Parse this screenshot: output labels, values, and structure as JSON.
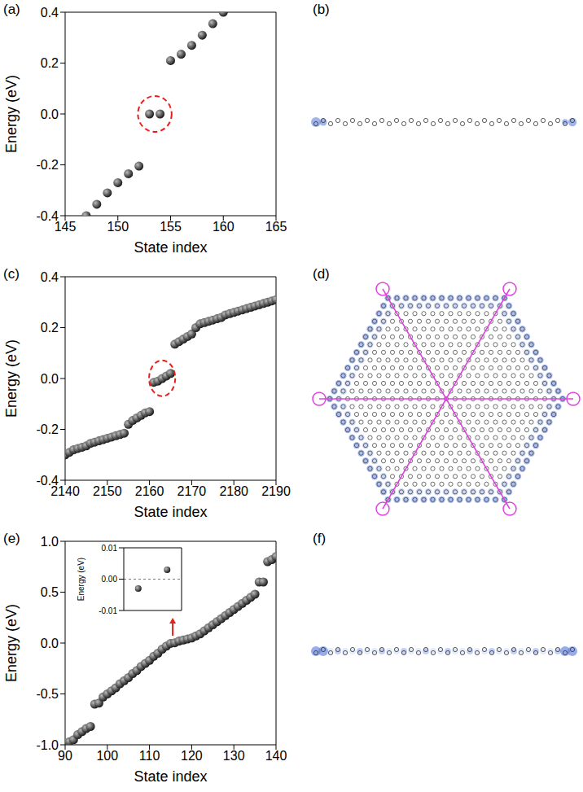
{
  "chart_data": [
    {
      "title": "(a)",
      "type": "scatter",
      "x_label": "State index",
      "y_label": "Energy (eV)",
      "color": "#111111",
      "marker": "circle",
      "x": [
        147,
        148,
        149,
        150,
        151,
        152,
        153,
        154,
        155,
        156,
        157,
        158,
        159,
        160
      ],
      "values": [
        -0.4,
        -0.355,
        -0.31,
        -0.27,
        -0.235,
        -0.205,
        0.0,
        0.0,
        0.21,
        0.235,
        0.27,
        0.31,
        0.355,
        0.4
      ],
      "xlim": [
        145,
        165
      ],
      "xticks": [
        145,
        150,
        155,
        160,
        165
      ],
      "ylim": [
        -0.4,
        0.4
      ],
      "yticks": [
        -0.4,
        -0.2,
        {
          "value": 0,
          "label": "0.0"
        },
        0.2,
        0.4
      ],
      "highlighted": [
        153,
        154
      ]
    },
    {
      "title": "(c)",
      "type": "scatter",
      "x_label": "State index",
      "y_label": "Energy (eV)",
      "color": "#111111",
      "marker": "circle",
      "x": [
        2140,
        2141,
        2142,
        2143,
        2144,
        2145,
        2146,
        2147,
        2148,
        2149,
        2150,
        2151,
        2152,
        2153,
        2154,
        2155,
        2156,
        2157,
        2158,
        2159,
        2160,
        2161,
        2162,
        2163,
        2164,
        2165,
        2166,
        2167,
        2168,
        2169,
        2170,
        2171,
        2172,
        2173,
        2174,
        2175,
        2176,
        2177,
        2178,
        2179,
        2180,
        2181,
        2182,
        2183,
        2184,
        2185,
        2186,
        2187,
        2188,
        2189,
        2190
      ],
      "values": [
        -0.3,
        -0.29,
        -0.28,
        -0.275,
        -0.27,
        -0.265,
        -0.255,
        -0.25,
        -0.245,
        -0.24,
        -0.235,
        -0.23,
        -0.225,
        -0.22,
        -0.215,
        -0.18,
        -0.165,
        -0.155,
        -0.145,
        -0.135,
        -0.13,
        -0.015,
        -0.01,
        0.0,
        0.01,
        0.02,
        0.135,
        0.145,
        0.155,
        0.165,
        0.175,
        0.2,
        0.215,
        0.22,
        0.225,
        0.23,
        0.235,
        0.24,
        0.25,
        0.255,
        0.26,
        0.265,
        0.27,
        0.275,
        0.28,
        0.285,
        0.29,
        0.295,
        0.3,
        0.305,
        0.31
      ],
      "xlim": [
        2140,
        2190
      ],
      "xticks": [
        2140,
        2150,
        2160,
        2170,
        2180,
        2190
      ],
      "ylim": [
        -0.4,
        0.4
      ],
      "yticks": [
        -0.4,
        -0.2,
        {
          "value": 0,
          "label": "0.0"
        },
        0.2,
        0.4
      ],
      "highlighted": [
        2161,
        2162,
        2163,
        2164,
        2165
      ]
    },
    {
      "title": "(e)",
      "type": "scatter",
      "x_label": "State index",
      "y_label": "Energy (eV)",
      "color": "#111111",
      "marker": "circle",
      "x": [
        91,
        92,
        93,
        94,
        95,
        96,
        97,
        98,
        99,
        100,
        101,
        102,
        103,
        104,
        105,
        106,
        107,
        108,
        109,
        110,
        111,
        112,
        113,
        114,
        115,
        116,
        117,
        118,
        119,
        120,
        121,
        122,
        123,
        124,
        125,
        126,
        127,
        128,
        129,
        130,
        131,
        132,
        133,
        134,
        135,
        136,
        137,
        138,
        139,
        140
      ],
      "values": [
        -0.97,
        -0.95,
        -0.9,
        -0.87,
        -0.84,
        -0.82,
        -0.6,
        -0.59,
        -0.53,
        -0.5,
        -0.47,
        -0.44,
        -0.4,
        -0.37,
        -0.34,
        -0.3,
        -0.27,
        -0.23,
        -0.2,
        -0.17,
        -0.13,
        -0.1,
        -0.06,
        -0.03,
        -0.003,
        0.003,
        0.02,
        0.03,
        0.04,
        0.05,
        0.07,
        0.09,
        0.12,
        0.15,
        0.18,
        0.21,
        0.24,
        0.27,
        0.3,
        0.33,
        0.36,
        0.39,
        0.42,
        0.45,
        0.48,
        0.6,
        0.6,
        0.8,
        0.82,
        0.85
      ],
      "xlim": [
        90,
        140
      ],
      "xticks": [
        90,
        100,
        110,
        120,
        130,
        140
      ],
      "ylim": [
        -1,
        1
      ],
      "yticks": [
        {
          "value": -1,
          "label": "-1.0"
        },
        -0.5,
        {
          "value": 0,
          "label": "0.0"
        },
        0.5,
        {
          "value": 1,
          "label": "1.0"
        }
      ],
      "inset": {
        "type": "scatter",
        "y_label": "Energy (eV)",
        "color": "#111111",
        "marker": "circle",
        "x": [
          115,
          116
        ],
        "values": [
          -0.003,
          0.003
        ],
        "xlim": [
          114.5,
          116.5
        ],
        "ylim": [
          -0.01,
          0.01
        ],
        "yticks": [
          -0.01,
          {
            "value": 0,
            "label": "0.00"
          },
          0.01
        ],
        "tick_labels": "y",
        "hline": 0
      }
    }
  ],
  "images": [
    {
      "label": "(b)"
    },
    {
      "label": "(d)"
    },
    {
      "label": "(f)"
    }
  ]
}
